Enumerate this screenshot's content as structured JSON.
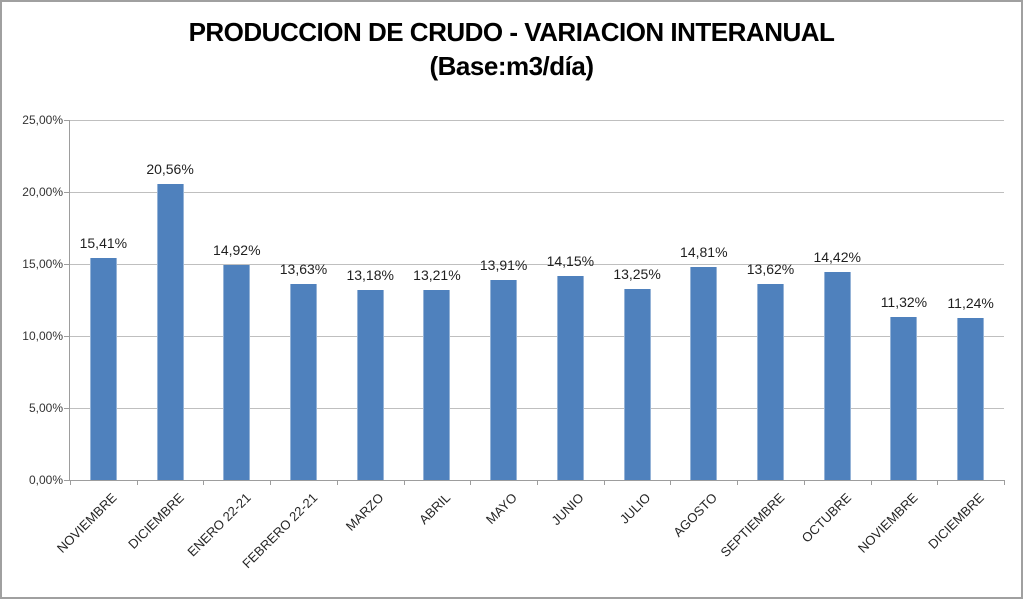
{
  "chart_data": {
    "type": "bar",
    "title": "PRODUCCION DE CRUDO - VARIACION INTERANUAL",
    "subtitle": "(Base:m3/día)",
    "categories": [
      "NOVIEMBRE",
      "DICIEMBRE",
      "ENERO 22-21",
      "FEBRERO 22-21",
      "MARZO",
      "ABRIL",
      "MAYO",
      "JUNIO",
      "JULIO",
      "AGOSTO",
      "SEPTIEMBRE",
      "OCTUBRE",
      "NOVIEMBRE",
      "DICIEMBRE"
    ],
    "values": [
      15.41,
      20.56,
      14.92,
      13.63,
      13.18,
      13.21,
      13.91,
      14.15,
      13.25,
      14.81,
      13.62,
      14.42,
      11.32,
      11.24
    ],
    "value_labels": [
      "15,41%",
      "20,56%",
      "14,92%",
      "13,63%",
      "13,18%",
      "13,21%",
      "13,91%",
      "14,15%",
      "13,25%",
      "14,81%",
      "13,62%",
      "14,42%",
      "11,32%",
      "11,24%"
    ],
    "xlabel": "",
    "ylabel": "",
    "ylim": [
      0,
      25
    ],
    "y_ticks": {
      "values": [
        0,
        5,
        10,
        15,
        20,
        25
      ],
      "labels": [
        "0,00%",
        "5,00%",
        "10,00%",
        "15,00%",
        "20,00%",
        "25,00%"
      ]
    },
    "grid": true,
    "legend": "none",
    "colors": {
      "bar": "#4f81bd",
      "bar_edge": "#95b3d7",
      "gridline": "#bfbfbf",
      "axis": "#9d9d9d",
      "text": "#262626",
      "frame_border": "#a0a0a0"
    }
  }
}
